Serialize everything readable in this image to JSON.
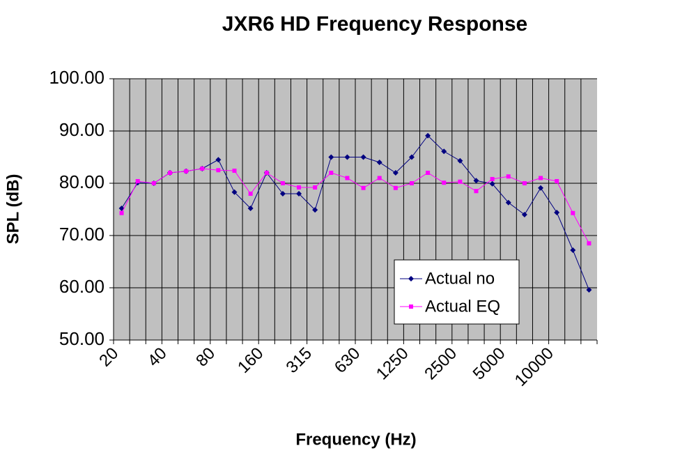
{
  "chart_data": {
    "type": "line",
    "title": "JXR6 HD Frequency Response",
    "x_label": "Frequency (Hz)",
    "y_label": "SPL (dB)",
    "categories": [
      "20",
      null,
      null,
      "40",
      null,
      null,
      "80",
      null,
      null,
      "160",
      null,
      null,
      "315",
      null,
      null,
      "630",
      null,
      null,
      "1250",
      null,
      null,
      "2500",
      null,
      null,
      "5000",
      null,
      null,
      "10000",
      null,
      null
    ],
    "series": [
      {
        "name": "Actual no",
        "color": "#000080",
        "marker": "diamond",
        "values": [
          75.2,
          80.1,
          80.0,
          82.0,
          82.3,
          82.8,
          84.5,
          78.3,
          75.2,
          82.0,
          78.0,
          78.0,
          74.9,
          85.0,
          85.0,
          85.0,
          84.0,
          82.0,
          85.0,
          89.1,
          86.1,
          84.3,
          80.5,
          79.9,
          76.3,
          74.0,
          79.1,
          74.4,
          67.2,
          59.6
        ]
      },
      {
        "name": "Actual EQ",
        "color": "#ff00ff",
        "marker": "square",
        "values": [
          74.3,
          80.4,
          80.0,
          82.0,
          82.3,
          82.8,
          82.5,
          82.4,
          78.0,
          82.0,
          80.0,
          79.2,
          79.2,
          82.0,
          81.0,
          79.1,
          81.0,
          79.1,
          80.0,
          82.0,
          80.1,
          80.3,
          78.5,
          80.8,
          81.3,
          80.0,
          81.0,
          80.4,
          74.3,
          68.5
        ]
      }
    ],
    "ylim": [
      50,
      100
    ],
    "yticks": [
      {
        "value": 50,
        "label": "50.00"
      },
      {
        "value": 60,
        "label": "60.00"
      },
      {
        "value": 70,
        "label": "70.00"
      },
      {
        "value": 80,
        "label": "80.00"
      },
      {
        "value": 90,
        "label": "90.00"
      },
      {
        "value": 100,
        "label": "100.00"
      }
    ],
    "grid": true,
    "plot_background": "#c0c0c0",
    "legend_position": "lower right"
  }
}
